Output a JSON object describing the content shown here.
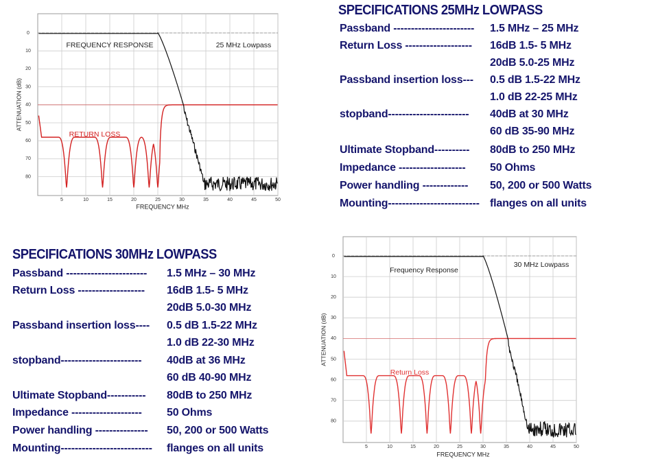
{
  "specs": [
    {
      "title": "SPECIFICATIONS 25MHz LOWPASS",
      "rows": [
        {
          "label": "Passband -----------------------",
          "value": "1.5 MHz – 25 MHz"
        },
        {
          "label": "Return Loss -------------------",
          "value": "16dB 1.5- 5 MHz"
        },
        {
          "value": "20dB 5.0-25 MHz"
        },
        {
          "label": "Passband insertion loss---",
          "value": "0.5 dB 1.5-22 MHz"
        },
        {
          "value": "1.0 dB 22-25 MHz"
        },
        {
          "label": "stopband-----------------------",
          "value": "40dB at 30 MHz"
        },
        {
          "value": "60 dB 35-90 MHz"
        },
        {
          "label": "Ultimate Stopband----------",
          "value": "80dB to 250 MHz"
        },
        {
          "label": "Impedance -------------------",
          "value": "50 Ohms"
        },
        {
          "label": "Power handling -------------",
          "value": "50, 200 or 500 Watts"
        },
        {
          "label": "Mounting--------------------------",
          "value": "flanges on all units"
        }
      ]
    },
    {
      "title": "SPECIFICATIONS 30MHz LOWPASS",
      "rows": [
        {
          "label": "Passband -----------------------",
          "value": "1.5 MHz – 30 MHz"
        },
        {
          "label": "Return Loss -------------------",
          "value": "16dB 1.5- 5 MHz"
        },
        {
          "value": "20dB 5.0-30 MHz"
        },
        {
          "label": "Passband insertion loss----",
          "value": "0.5 dB 1.5-22 MHz"
        },
        {
          "value": "1.0 dB 22-30 MHz"
        },
        {
          "label": "stopband-----------------------",
          "value": "40dB at 36 MHz"
        },
        {
          "value": "60 dB 40-90 MHz"
        },
        {
          "label": "Ultimate Stopband-----------",
          "value": "80dB to 250 MHz"
        },
        {
          "label": "Impedance --------------------",
          "value": "50 Ohms"
        },
        {
          "label": "Power handling ---------------",
          "value": "50, 200 or 500 Watts"
        },
        {
          "label": "Mounting--------------------------",
          "value": "flanges on all units"
        }
      ]
    }
  ],
  "charts": [
    {
      "title": "FREQUENCY RESPONSE",
      "subtitle": "25 MHz Lowpass",
      "return_loss_label": "RETURN LOSS",
      "x_label": "FREQUENCY MHz",
      "y_label": "ATTENUATION (dB)",
      "xticks": [
        5,
        10,
        15,
        20,
        25,
        30,
        35,
        40,
        45,
        50
      ],
      "yticks": [
        0,
        10,
        20,
        30,
        40,
        50,
        60,
        70,
        80
      ]
    },
    {
      "title": "Frequency Response",
      "subtitle": "30 MHz Lowpass",
      "return_loss_label": "Return Loss",
      "x_label": "FREQUENCY MHz",
      "y_label": "ATTENUATION (dB)",
      "xticks": [
        5,
        10,
        15,
        20,
        25,
        30,
        35,
        40,
        45,
        50
      ],
      "yticks": [
        0,
        10,
        20,
        30,
        40,
        50,
        60,
        70,
        80
      ]
    }
  ]
}
